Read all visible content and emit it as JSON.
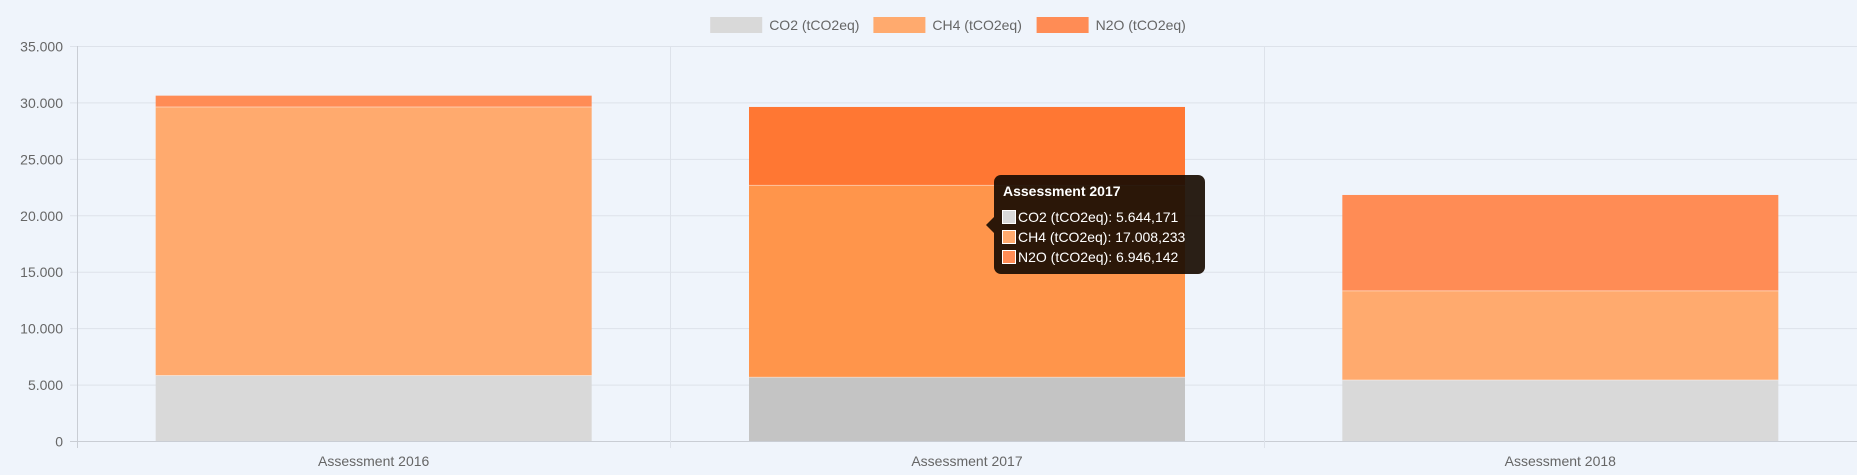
{
  "chart_data": {
    "type": "bar",
    "stacked": true,
    "categories": [
      "Assessment 2016",
      "Assessment 2017",
      "Assessment 2018"
    ],
    "series": [
      {
        "name": "CO2 (tCO2eq)",
        "color": "#d9d9d9",
        "values": [
          5800,
          5644.171,
          5400
        ]
      },
      {
        "name": "CH4 (tCO2eq)",
        "color": "#ffaa6e",
        "values": [
          23800,
          17008.233,
          7900
        ]
      },
      {
        "name": "N2O (tCO2eq)",
        "color": "#ff8c55",
        "values": [
          1000,
          6946.142,
          8500
        ]
      }
    ],
    "hovered_colors": [
      "#c4c4c4",
      "#ff954b",
      "#ff7733"
    ],
    "y_ticks": [
      "0",
      "5.000",
      "10.000",
      "15.000",
      "20.000",
      "25.000",
      "30.000",
      "35.000"
    ],
    "ylim": [
      0,
      35000
    ],
    "grid": true,
    "legend_position": "top-center",
    "hovered_category_index": 1,
    "tooltip": {
      "title": "Assessment 2017",
      "rows": [
        {
          "label": "CO2 (tCO2eq): 5.644,171",
          "color": "#d9d9d9"
        },
        {
          "label": "CH4 (tCO2eq): 17.008,233",
          "color": "#ffaa6e"
        },
        {
          "label": "N2O (tCO2eq): 6.946,142",
          "color": "#ff8c55"
        }
      ]
    }
  }
}
